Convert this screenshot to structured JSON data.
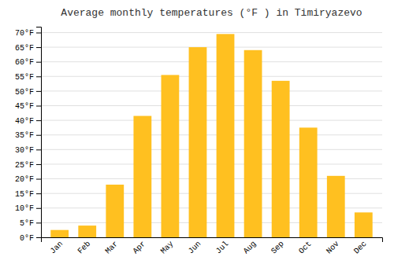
{
  "chart_data": {
    "type": "bar",
    "title": "Average monthly temperatures (°F ) in Timiryazevo",
    "categories": [
      "Jan",
      "Feb",
      "Mar",
      "Apr",
      "May",
      "Jun",
      "Jul",
      "Aug",
      "Sep",
      "Oct",
      "Nov",
      "Dec"
    ],
    "values": [
      2.5,
      4.0,
      18.0,
      41.5,
      55.5,
      65.0,
      69.5,
      64.0,
      53.5,
      37.5,
      21.0,
      8.5
    ],
    "color": "#FFC020",
    "ylim": [
      0,
      72
    ],
    "yticks": [
      {
        "value": 0,
        "label": "0°F"
      },
      {
        "value": 5,
        "label": "5°F"
      },
      {
        "value": 10,
        "label": "10°F"
      },
      {
        "value": 15,
        "label": "15°F"
      },
      {
        "value": 20,
        "label": "20°F"
      },
      {
        "value": 25,
        "label": "25°F"
      },
      {
        "value": 30,
        "label": "30°F"
      },
      {
        "value": 35,
        "label": "35°F"
      },
      {
        "value": 40,
        "label": "40°F"
      },
      {
        "value": 45,
        "label": "45°F"
      },
      {
        "value": 50,
        "label": "50°F"
      },
      {
        "value": 55,
        "label": "55°F"
      },
      {
        "value": 60,
        "label": "60°F"
      },
      {
        "value": 65,
        "label": "65°F"
      },
      {
        "value": 70,
        "label": "70°F"
      }
    ],
    "grid": true
  }
}
